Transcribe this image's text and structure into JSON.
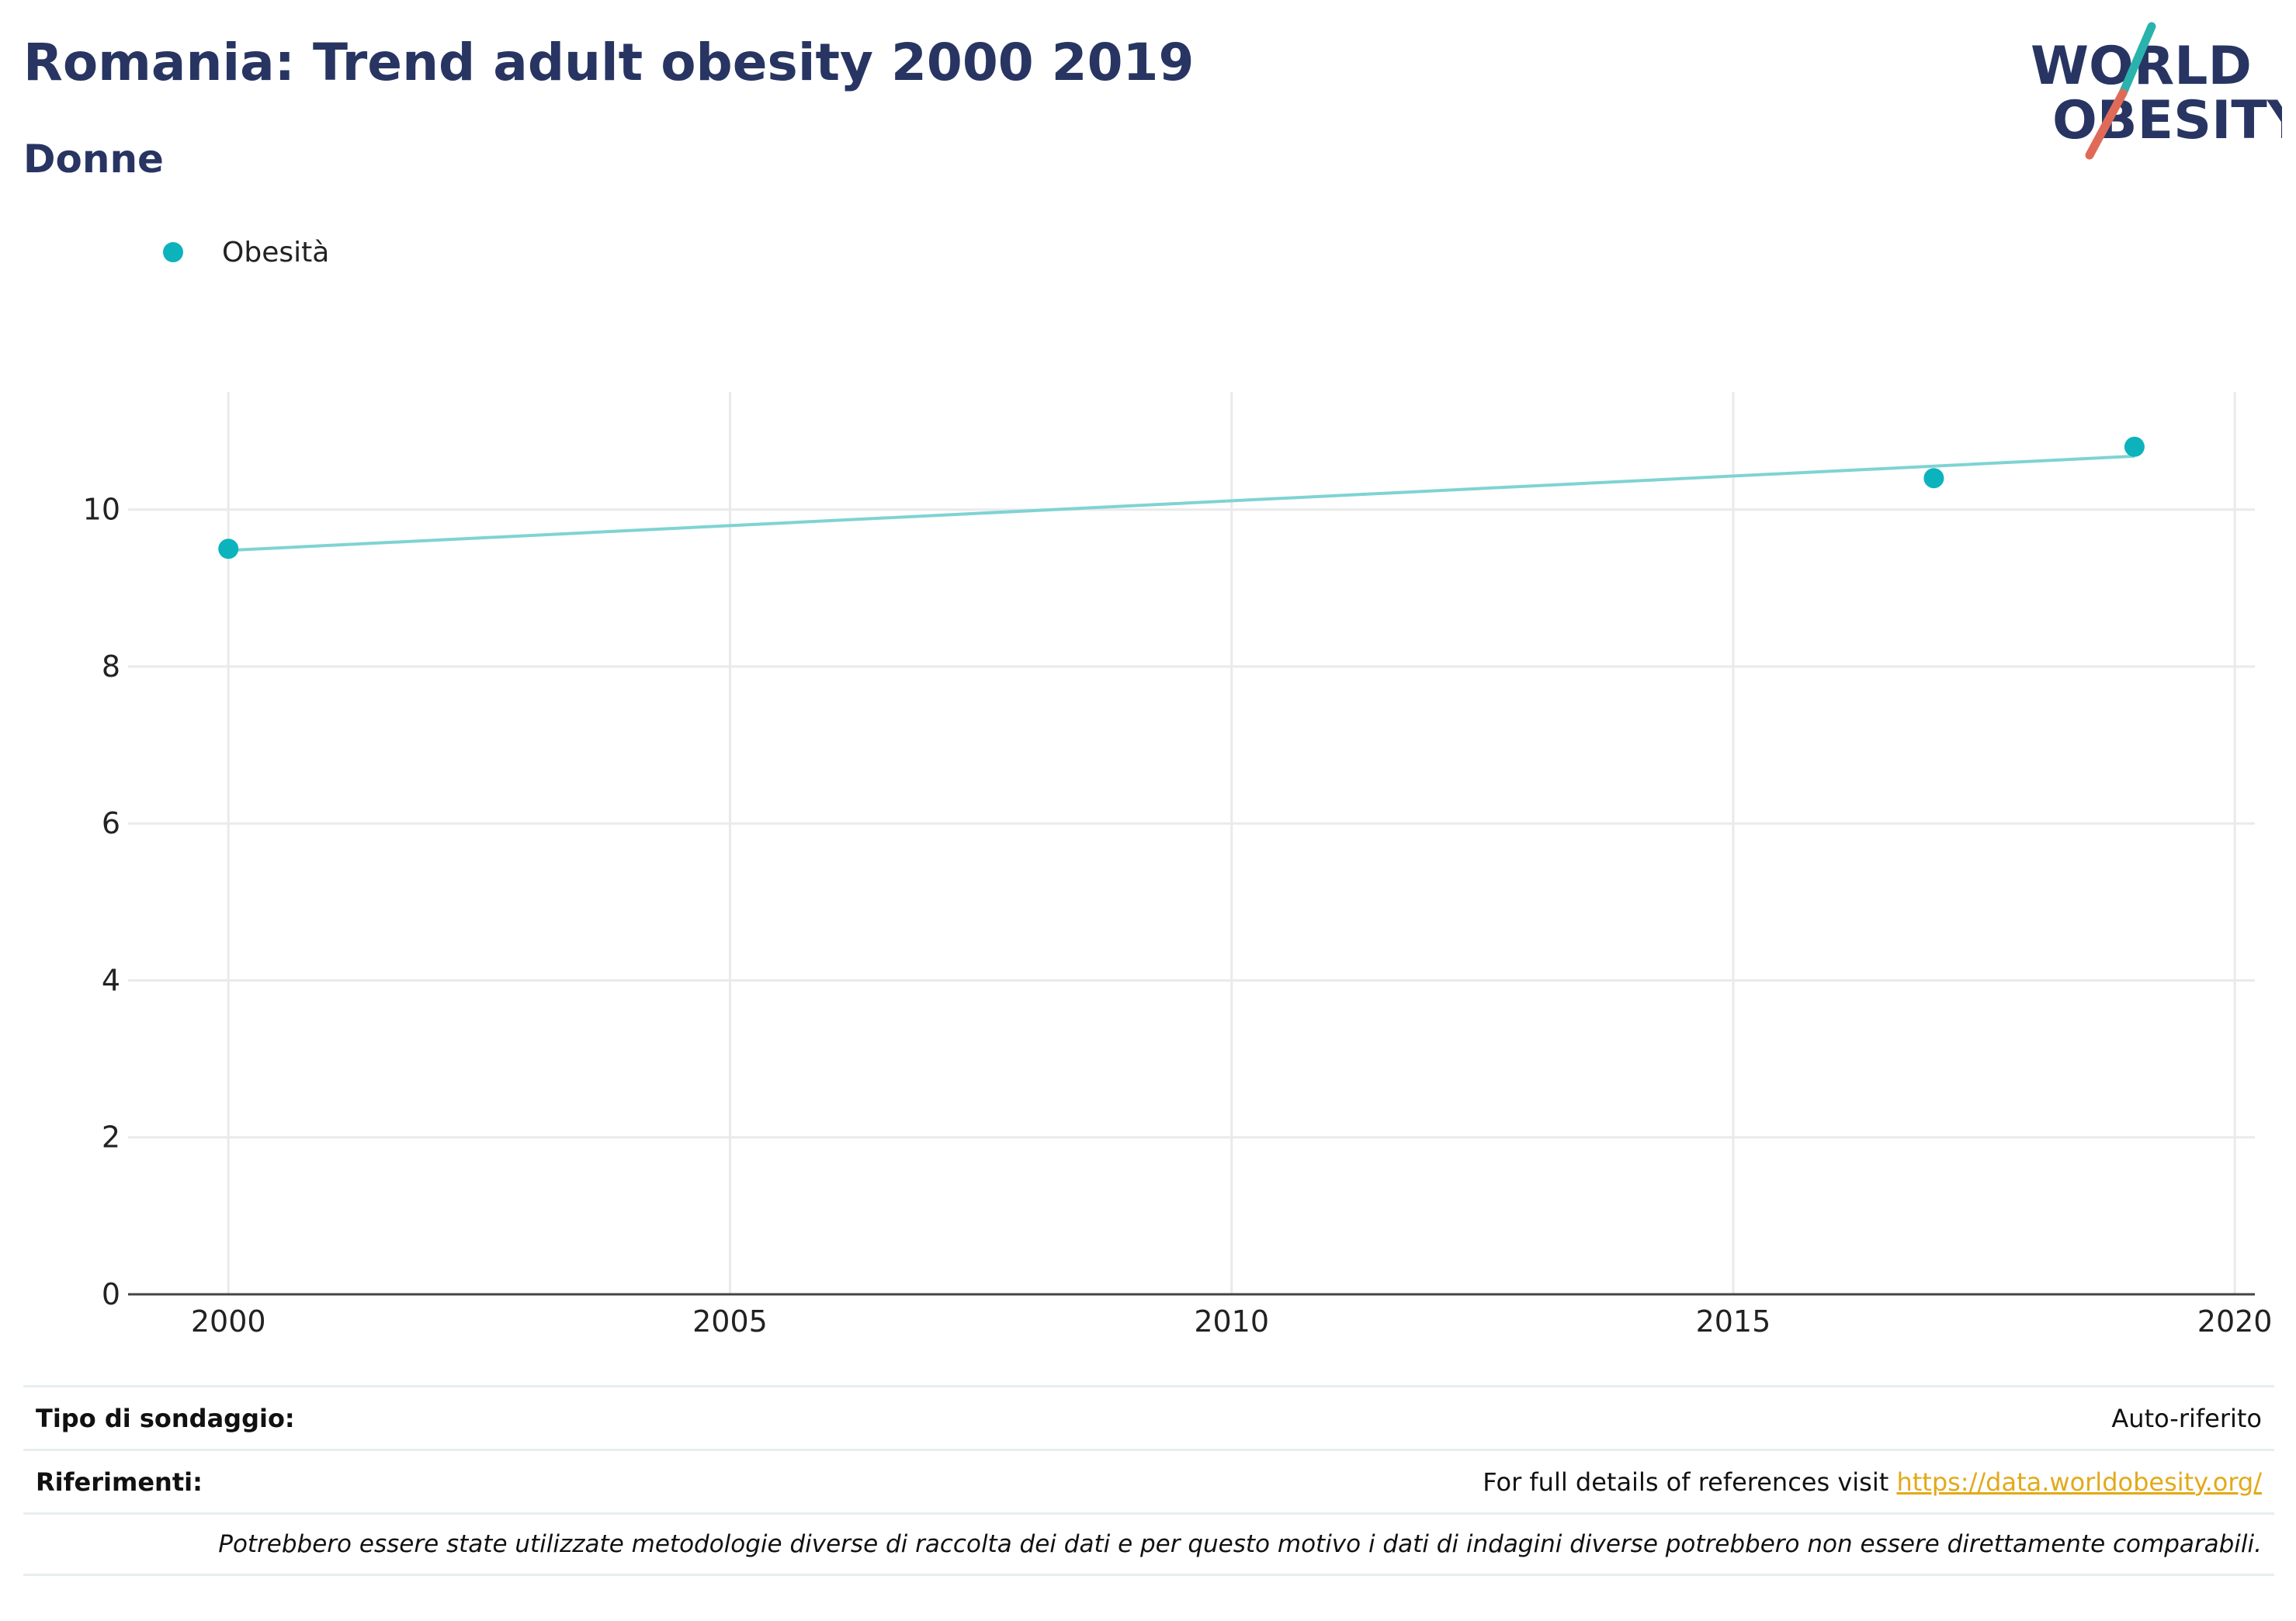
{
  "header": {
    "title": "Romania: Trend adult obesity 2000 2019",
    "subtitle": "Donne"
  },
  "logo": {
    "line1": "WORLD",
    "line2": "OBESITY",
    "text_color": "#283562",
    "slash_teal": "#2ab3ad",
    "slash_red": "#e06a58"
  },
  "legend": {
    "label": "Obesità",
    "color": "#0cb3bd"
  },
  "chart_data": {
    "type": "scatter",
    "title": "Romania: Trend adult obesity 2000 2019",
    "subtitle": "Donne",
    "xlabel": "",
    "ylabel": "",
    "xlim": [
      1999,
      2020.2
    ],
    "ylim": [
      0,
      11.5
    ],
    "x_ticks": [
      2000,
      2005,
      2010,
      2015,
      2020
    ],
    "y_ticks": [
      0,
      2,
      4,
      6,
      8,
      10
    ],
    "grid": true,
    "legend_placement": "top-left",
    "series": [
      {
        "name": "Obesità",
        "type": "scatter",
        "color": "#0cb3bd",
        "points": [
          {
            "x": 2000,
            "y": 9.5
          },
          {
            "x": 2017,
            "y": 10.4
          },
          {
            "x": 2019,
            "y": 10.8
          }
        ]
      }
    ],
    "trendline": {
      "color": "#7fd3d3",
      "points": [
        {
          "x": 2000,
          "y": 9.48
        },
        {
          "x": 2019,
          "y": 10.68
        }
      ]
    }
  },
  "footer": {
    "survey_label": "Tipo di sondaggio:",
    "survey_value": "Auto-riferito",
    "references_label": "Riferimenti:",
    "references_text": "For full details of references visit ",
    "references_link": "https://data.worldobesity.org/",
    "note": "Potrebbero essere state utilizzate metodologie diverse di raccolta dei dati e per questo motivo i dati di indagini diverse potrebbero non essere direttamente comparabili."
  }
}
